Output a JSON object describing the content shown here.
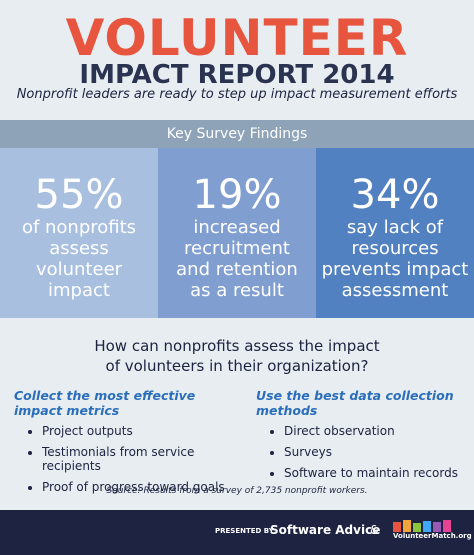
{
  "header": {
    "title": "VOLUNTEER",
    "subtitle": "IMPACT REPORT 2014",
    "tagline": "Nonprofit leaders are ready to step up impact measurement efforts"
  },
  "findings": {
    "heading": "Key Survey Findings",
    "items": [
      {
        "stat": "55%",
        "lines": [
          "of nonprofits",
          "assess",
          "volunteer",
          "impact"
        ]
      },
      {
        "stat": "19%",
        "lines": [
          "increased",
          "recruitment",
          "and retention",
          "as a result"
        ]
      },
      {
        "stat": "34%",
        "lines": [
          "say lack of",
          "resources",
          "prevents impact",
          "assessment"
        ]
      }
    ]
  },
  "question": {
    "lines": [
      "How can nonprofits assess the impact",
      "of volunteers in their organization?"
    ]
  },
  "columns": [
    {
      "heading": "Collect the most effective impact metrics",
      "items": [
        "Project outputs",
        "Testimonials from service recipients",
        "Proof of progress toward goals"
      ]
    },
    {
      "heading": "Use the best data collection methods",
      "items": [
        "Direct observation",
        "Surveys",
        "Software to maintain records"
      ]
    }
  ],
  "source": "Source: Results from a survey of 2,735 nonprofit workers.",
  "footer": {
    "presented_by": "PRESENTED BY",
    "sponsor1": "Software Advice",
    "separator": "&",
    "sponsor2": "VolunteerMatch.org"
  }
}
